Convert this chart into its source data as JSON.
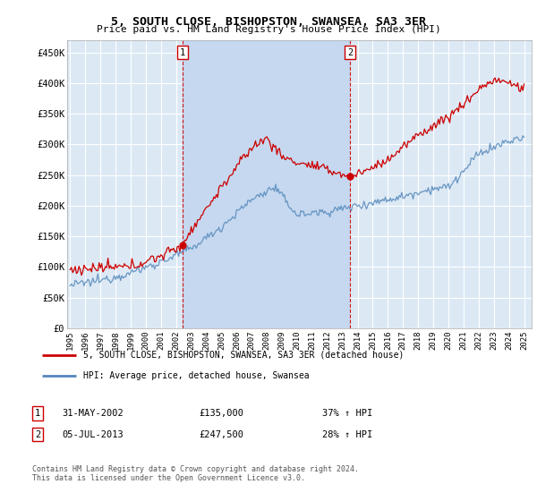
{
  "title": "5, SOUTH CLOSE, BISHOPSTON, SWANSEA, SA3 3ER",
  "subtitle": "Price paid vs. HM Land Registry's House Price Index (HPI)",
  "ylabel_ticks": [
    "£0",
    "£50K",
    "£100K",
    "£150K",
    "£200K",
    "£250K",
    "£300K",
    "£350K",
    "£400K",
    "£450K"
  ],
  "ytick_vals": [
    0,
    50000,
    100000,
    150000,
    200000,
    250000,
    300000,
    350000,
    400000,
    450000
  ],
  "ylim": [
    0,
    470000
  ],
  "xlim_start": 1994.8,
  "xlim_end": 2025.5,
  "background_color": "#dce9f5",
  "highlight_color": "#c5d8ef",
  "grid_color": "#ffffff",
  "purchase1_date": 2002.42,
  "purchase1_price": 135000,
  "purchase2_date": 2013.5,
  "purchase2_price": 247500,
  "legend_line1": "5, SOUTH CLOSE, BISHOPSTON, SWANSEA, SA3 3ER (detached house)",
  "legend_line2": "HPI: Average price, detached house, Swansea",
  "label1_date": "31-MAY-2002",
  "label1_price": "£135,000",
  "label1_hpi": "37% ↑ HPI",
  "label2_date": "05-JUL-2013",
  "label2_price": "£247,500",
  "label2_hpi": "28% ↑ HPI",
  "footer": "Contains HM Land Registry data © Crown copyright and database right 2024.\nThis data is licensed under the Open Government Licence v3.0.",
  "hpi_color": "#5588bb",
  "price_color": "#cc0000",
  "marker_color": "#cc0000"
}
